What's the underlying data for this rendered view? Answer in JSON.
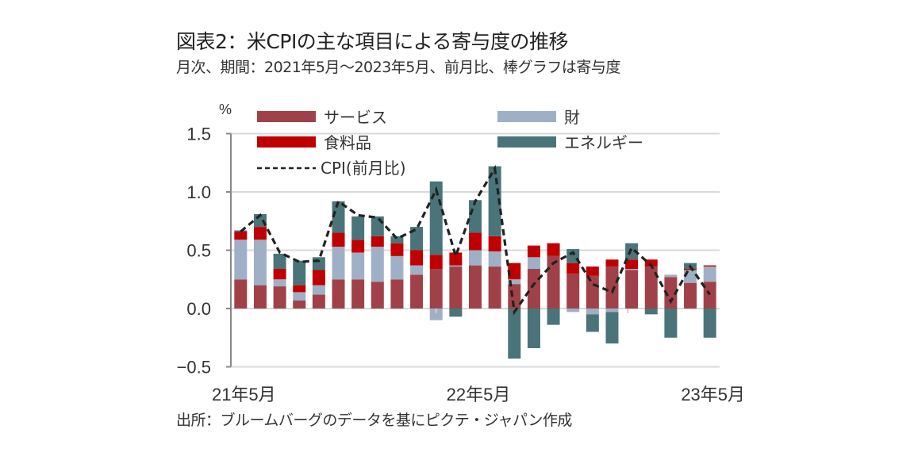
{
  "header": {
    "title": "図表2：米CPIの主な項目による寄与度の推移",
    "subtitle": "月次、期間：2021年5月～2023年5月、前月比、棒グラフは寄与度"
  },
  "footer": {
    "source": "出所：ブルームバーグのデータを基にピクテ・ジャパン作成"
  },
  "chart_data": {
    "type": "bar",
    "stacked": true,
    "title": "図表2：米CPIの主な項目による寄与度の推移",
    "ylabel": "%",
    "ylim": [
      -0.5,
      1.5
    ],
    "yticks": [
      1.5,
      1.0,
      0.5,
      0.0,
      -0.5
    ],
    "ytick_labels": [
      "1.5",
      "1.0",
      "0.5",
      "0.0",
      "−0.5"
    ],
    "xtick_labels": [
      {
        "index": 0,
        "label": "21年5月"
      },
      {
        "index": 12,
        "label": "22年5月"
      },
      {
        "index": 24,
        "label": "23年5月"
      }
    ],
    "grid": true,
    "legend_position": "top",
    "categories": [
      "2021-05",
      "2021-06",
      "2021-07",
      "2021-08",
      "2021-09",
      "2021-10",
      "2021-11",
      "2021-12",
      "2022-01",
      "2022-02",
      "2022-03",
      "2022-04",
      "2022-05",
      "2022-06",
      "2022-07",
      "2022-08",
      "2022-09",
      "2022-10",
      "2022-11",
      "2022-12",
      "2023-01",
      "2023-02",
      "2023-03",
      "2023-04",
      "2023-05"
    ],
    "series": [
      {
        "name": "サービス",
        "kind": "bar",
        "color": "#A0414A",
        "values": [
          0.25,
          0.2,
          0.19,
          0.07,
          0.12,
          0.25,
          0.25,
          0.23,
          0.25,
          0.29,
          0.34,
          0.36,
          0.37,
          0.36,
          0.21,
          0.34,
          0.45,
          0.3,
          0.28,
          0.36,
          0.33,
          0.36,
          0.27,
          0.22,
          0.23
        ]
      },
      {
        "name": "財",
        "kind": "bar",
        "color": "#9FB0C6",
        "values": [
          0.34,
          0.39,
          0.06,
          0.07,
          0.08,
          0.28,
          0.23,
          0.3,
          0.2,
          0.08,
          -0.1,
          0.01,
          0.13,
          0.13,
          0.04,
          0.1,
          0.0,
          -0.03,
          -0.05,
          -0.03,
          0.01,
          0.0,
          0.02,
          0.11,
          0.13
        ]
      },
      {
        "name": "食料品",
        "kind": "bar",
        "color": "#C00000",
        "values": [
          0.07,
          0.11,
          0.09,
          0.06,
          0.13,
          0.12,
          0.11,
          0.09,
          0.11,
          0.13,
          0.12,
          0.11,
          0.15,
          0.13,
          0.14,
          0.1,
          0.11,
          0.09,
          0.08,
          0.06,
          0.08,
          0.06,
          0.0,
          0.01,
          0.01
        ]
      },
      {
        "name": "エネルギー",
        "kind": "bar",
        "color": "#4A7479",
        "values": [
          0.01,
          0.11,
          0.13,
          0.21,
          0.11,
          0.27,
          0.2,
          0.17,
          0.06,
          0.2,
          0.63,
          -0.07,
          0.28,
          0.6,
          -0.43,
          -0.34,
          -0.14,
          0.12,
          -0.15,
          -0.27,
          0.14,
          -0.05,
          -0.25,
          0.05,
          -0.25
        ]
      },
      {
        "name": "CPI(前月比)",
        "kind": "line",
        "color": "#222222",
        "dash": true,
        "values": [
          0.66,
          0.8,
          0.48,
          0.4,
          0.41,
          0.92,
          0.8,
          0.78,
          0.6,
          0.68,
          1.02,
          0.45,
          0.92,
          1.2,
          -0.03,
          0.21,
          0.39,
          0.48,
          0.21,
          0.14,
          0.52,
          0.37,
          0.06,
          0.36,
          0.12
        ]
      }
    ]
  }
}
